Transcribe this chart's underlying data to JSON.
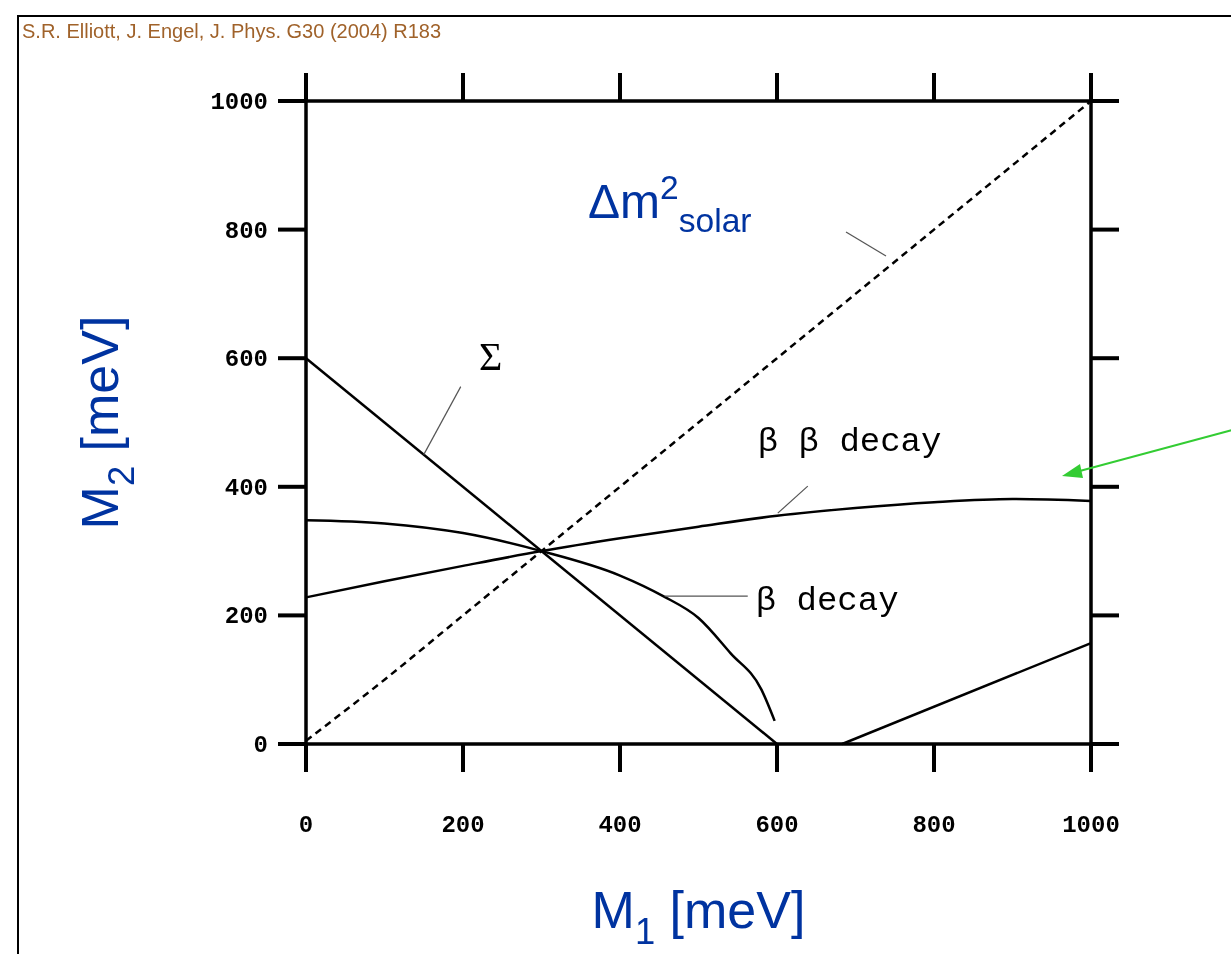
{
  "chart_data": {
    "type": "line",
    "xlabel": "M$_{1}$ [meV]",
    "ylabel": "M$_{2}$ [meV]",
    "xlim": [
      0,
      1000
    ],
    "ylim": [
      0,
      1000
    ],
    "xticks": [
      0,
      200,
      400,
      600,
      800,
      1000
    ],
    "yticks": [
      0,
      200,
      400,
      600,
      800,
      1000
    ],
    "grid": false,
    "marker": "none",
    "series": [
      {
        "color": "#000000",
        "line_style": "solid",
        "x": [
          0,
          600
        ],
        "values": [
          600,
          0
        ]
      },
      {
        "name": "Δm$^{2}$$_{solar}$",
        "color": "#000000",
        "line_style": "dashed",
        "x": [
          0,
          100,
          200,
          300,
          400,
          500,
          600,
          700,
          800,
          900,
          1000
        ],
        "values": [
          5,
          100,
          200,
          300,
          400,
          500,
          600,
          700,
          800,
          900,
          1000
        ]
      },
      {
        "color": "#000000",
        "line_style": "solid",
        "x": [
          0,
          100,
          200,
          300,
          400,
          455,
          500,
          541,
          580,
          597
        ],
        "values": [
          348,
          343,
          328,
          300,
          262,
          230,
          196,
          141,
          85,
          36
        ]
      },
      {
        "color": "#000000",
        "line_style": "solid",
        "x": [
          0,
          100,
          200,
          300,
          400,
          500,
          600,
          700,
          800,
          900,
          1000
        ],
        "values": [
          228,
          253,
          277,
          300,
          320,
          338,
          355,
          367,
          376,
          381,
          378
        ]
      },
      {
        "color": "#000000",
        "line_style": "solid",
        "x": [
          683,
          1000
        ],
        "values": [
          0,
          157
        ]
      }
    ],
    "annotations": [
      {
        "text": "Σ",
        "x": 150,
        "y": 450
      },
      {
        "text": "β β  decay",
        "x": 601,
        "y": 359
      },
      {
        "text": "β  decay",
        "x": 457,
        "y": 230
      },
      "S.R. Elliott, J. Engel, J. Phys. G30 (2004) R183"
    ]
  }
}
